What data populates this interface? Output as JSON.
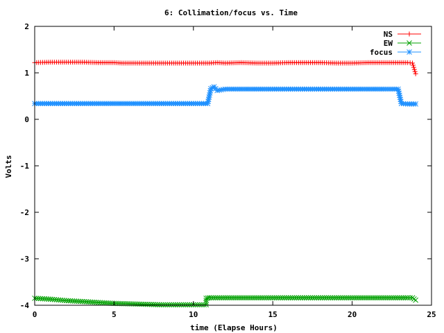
{
  "chart_data": {
    "type": "line",
    "title": "6: Collimation/focus vs. Time",
    "xlabel": "time (Elapse Hours)",
    "ylabel": "Volts",
    "xlim": [
      0,
      25
    ],
    "ylim": [
      -4,
      2
    ],
    "xticks": [
      "0",
      "5",
      "10",
      "15",
      "20",
      "25"
    ],
    "yticks": [
      "-4",
      "-3",
      "-2",
      "-1",
      "0",
      "1",
      "2"
    ],
    "grid": false,
    "legend_position": "top-right",
    "series": [
      {
        "name": "NS",
        "color": "#ff0000",
        "marker": "plus",
        "points": [
          [
            0,
            1.22
          ],
          [
            1,
            1.23
          ],
          [
            2,
            1.23
          ],
          [
            3,
            1.23
          ],
          [
            4,
            1.22
          ],
          [
            5,
            1.22
          ],
          [
            5.5,
            1.21
          ],
          [
            6,
            1.21
          ],
          [
            7,
            1.21
          ],
          [
            8,
            1.21
          ],
          [
            9,
            1.21
          ],
          [
            10,
            1.21
          ],
          [
            11,
            1.21
          ],
          [
            11.5,
            1.22
          ],
          [
            12,
            1.21
          ],
          [
            13,
            1.22
          ],
          [
            14,
            1.21
          ],
          [
            15,
            1.21
          ],
          [
            16,
            1.22
          ],
          [
            17,
            1.22
          ],
          [
            18,
            1.22
          ],
          [
            19,
            1.21
          ],
          [
            20,
            1.21
          ],
          [
            21,
            1.22
          ],
          [
            22,
            1.22
          ],
          [
            23,
            1.22
          ],
          [
            23.5,
            1.22
          ],
          [
            23.8,
            1.21
          ],
          [
            24.0,
            0.98
          ]
        ]
      },
      {
        "name": "EW",
        "color": "#00a000",
        "marker": "cross",
        "points": [
          [
            0,
            -3.85
          ],
          [
            0.5,
            -3.86
          ],
          [
            1,
            -3.87
          ],
          [
            2,
            -3.9
          ],
          [
            3,
            -3.92
          ],
          [
            4,
            -3.94
          ],
          [
            5,
            -3.96
          ],
          [
            6,
            -3.97
          ],
          [
            7,
            -3.98
          ],
          [
            8,
            -3.99
          ],
          [
            9,
            -3.99
          ],
          [
            10,
            -3.99
          ],
          [
            10.8,
            -3.99
          ],
          [
            10.8,
            -3.85
          ],
          [
            11,
            -3.84
          ],
          [
            12,
            -3.84
          ],
          [
            13,
            -3.84
          ],
          [
            14,
            -3.84
          ],
          [
            15,
            -3.84
          ],
          [
            16,
            -3.84
          ],
          [
            17,
            -3.84
          ],
          [
            18,
            -3.84
          ],
          [
            19,
            -3.84
          ],
          [
            20,
            -3.84
          ],
          [
            21,
            -3.84
          ],
          [
            22,
            -3.84
          ],
          [
            23,
            -3.84
          ],
          [
            23.5,
            -3.84
          ],
          [
            23.8,
            -3.84
          ],
          [
            24,
            -3.89
          ]
        ]
      },
      {
        "name": "focus",
        "color": "#1e90ff",
        "marker": "star",
        "points": [
          [
            0,
            0.34
          ],
          [
            1,
            0.34
          ],
          [
            2,
            0.34
          ],
          [
            3,
            0.34
          ],
          [
            4,
            0.34
          ],
          [
            5,
            0.34
          ],
          [
            6,
            0.34
          ],
          [
            7,
            0.34
          ],
          [
            8,
            0.34
          ],
          [
            9,
            0.34
          ],
          [
            10,
            0.34
          ],
          [
            10.9,
            0.34
          ],
          [
            11.1,
            0.66
          ],
          [
            11.3,
            0.7
          ],
          [
            11.5,
            0.62
          ],
          [
            12,
            0.65
          ],
          [
            13,
            0.65
          ],
          [
            14,
            0.65
          ],
          [
            15,
            0.65
          ],
          [
            16,
            0.65
          ],
          [
            17,
            0.65
          ],
          [
            18,
            0.65
          ],
          [
            19,
            0.65
          ],
          [
            20,
            0.65
          ],
          [
            21,
            0.65
          ],
          [
            22,
            0.65
          ],
          [
            22.9,
            0.65
          ],
          [
            23.1,
            0.34
          ],
          [
            23.5,
            0.33
          ],
          [
            24,
            0.33
          ]
        ]
      }
    ]
  }
}
